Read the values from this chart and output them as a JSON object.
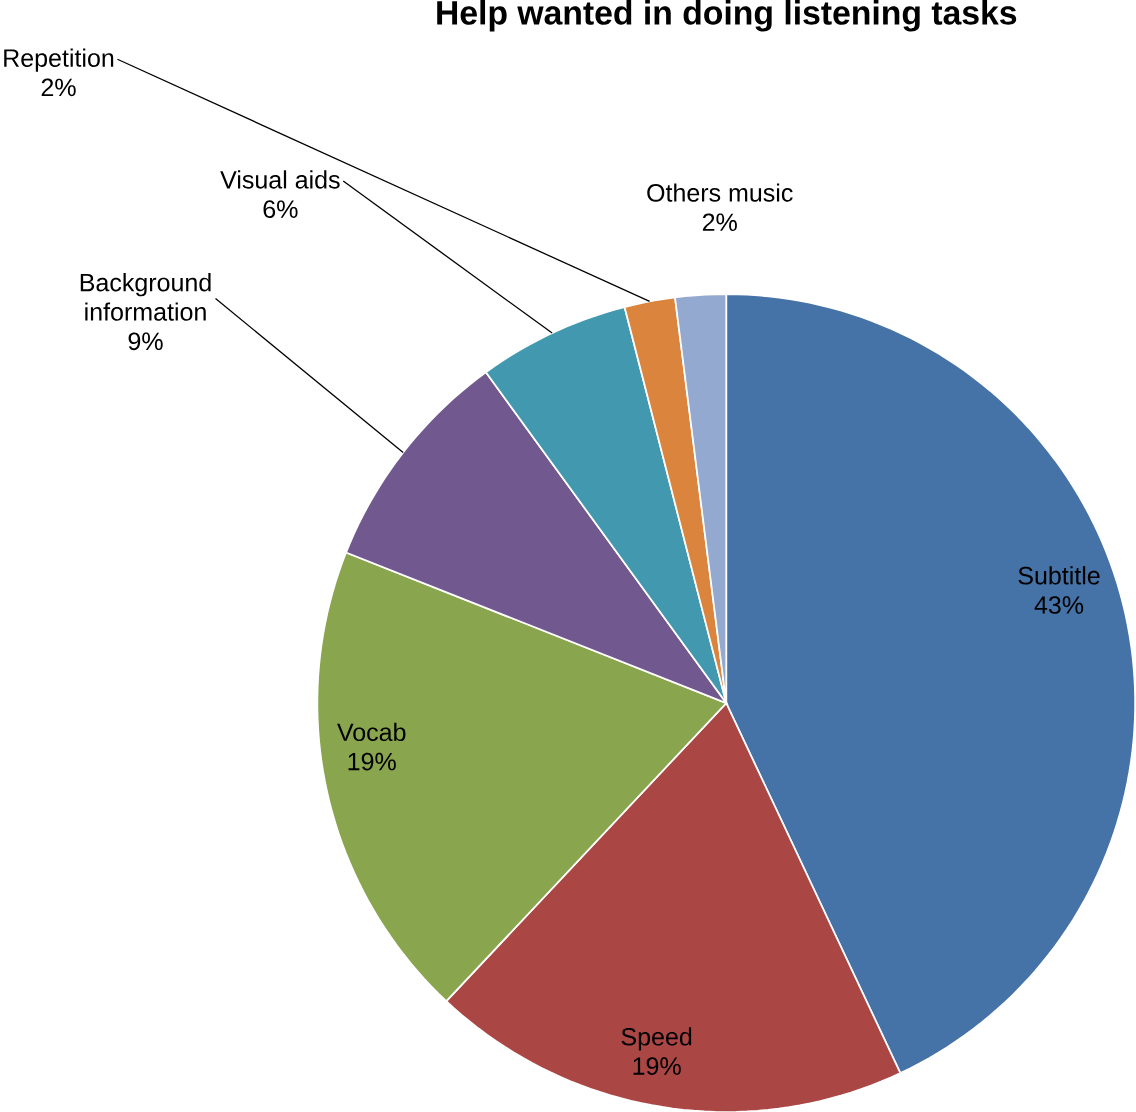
{
  "chart_data": {
    "type": "pie",
    "title": "Help wanted in doing listening tasks",
    "categories": [
      "Subtitle",
      "Speed",
      "Vocab",
      "Background information",
      "Visual aids",
      "Repetition",
      "Others music"
    ],
    "values": [
      43,
      19,
      19,
      9,
      6,
      2,
      2
    ],
    "value_labels": [
      "43%",
      "19%",
      "19%",
      "9%",
      "6%",
      "2%",
      "2%"
    ],
    "colors": [
      "#4572a7",
      "#aa4643",
      "#89a54e",
      "#71588f",
      "#4198af",
      "#db843d",
      "#93a9cf"
    ]
  }
}
